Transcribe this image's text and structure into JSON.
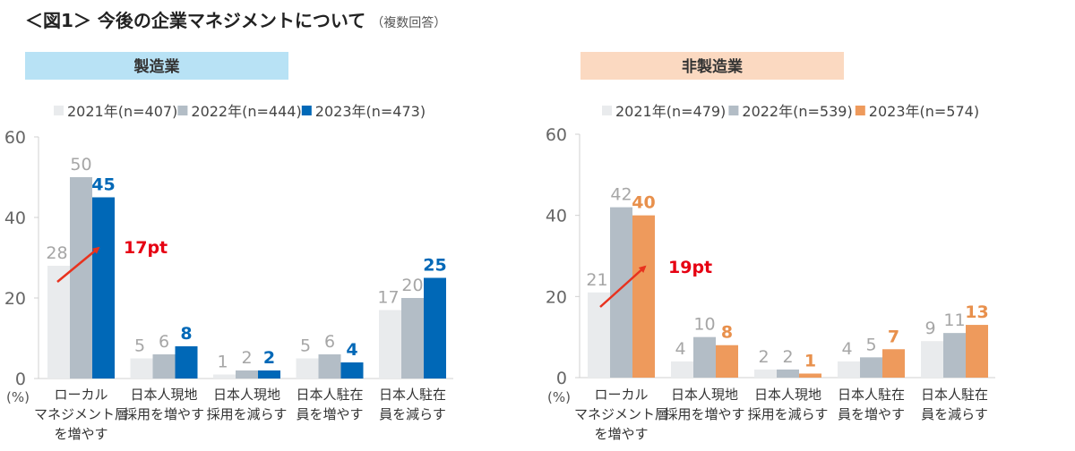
{
  "title": "＜図1＞ 今後の企業マネジメントについて",
  "title_note": "（複数回答）",
  "colors": {
    "y2021": "#e9ebed",
    "y2022": "#b3bdc6",
    "manufacturing_2023": "#0068b7",
    "nonmanufacturing_2023": "#ee9a5c",
    "nonmanufacturing_label": "#e8904c",
    "arrow": "#e8321e",
    "annotation": "#e60012",
    "label_gray": "#a6a6a6",
    "header_manufacturing": "#b8e2f5",
    "header_nonmanufacturing": "#fbd9c1"
  },
  "chart_data": [
    {
      "type": "bar",
      "panel_title": "製造業",
      "ylabel": "(%)",
      "ylim": [
        0,
        60
      ],
      "yticks": [
        0,
        20,
        40,
        60
      ],
      "categories": [
        [
          "ローカル",
          "マネジメント層",
          "を増やす"
        ],
        [
          "日本人現地",
          "採用を増やす"
        ],
        [
          "日本人現地",
          "採用を減らす"
        ],
        [
          "日本人駐在",
          "員を増やす"
        ],
        [
          "日本人駐在",
          "員を減らす"
        ]
      ],
      "legend_placement": "top",
      "series": [
        {
          "name": "2021年(n=407)",
          "values": [
            28,
            5,
            1,
            5,
            17
          ]
        },
        {
          "name": "2022年(n=444)",
          "values": [
            50,
            6,
            2,
            6,
            20
          ]
        },
        {
          "name": "2023年(n=473)",
          "values": [
            45,
            8,
            2,
            4,
            25
          ]
        }
      ],
      "annotation": "17pt"
    },
    {
      "type": "bar",
      "panel_title": "非製造業",
      "ylabel": "(%)",
      "ylim": [
        0,
        60
      ],
      "yticks": [
        0,
        20,
        40,
        60
      ],
      "categories": [
        [
          "ローカル",
          "マネジメント層",
          "を増やす"
        ],
        [
          "日本人現地",
          "採用を増やす"
        ],
        [
          "日本人現地",
          "採用を減らす"
        ],
        [
          "日本人駐在",
          "員を増やす"
        ],
        [
          "日本人駐在",
          "員を減らす"
        ]
      ],
      "legend_placement": "top",
      "series": [
        {
          "name": "2021年(n=479)",
          "values": [
            21,
            4,
            2,
            4,
            9
          ]
        },
        {
          "name": "2022年(n=539)",
          "values": [
            42,
            10,
            2,
            5,
            11
          ]
        },
        {
          "name": "2023年(n=574)",
          "values": [
            40,
            8,
            1,
            7,
            13
          ]
        }
      ],
      "annotation": "19pt"
    }
  ]
}
